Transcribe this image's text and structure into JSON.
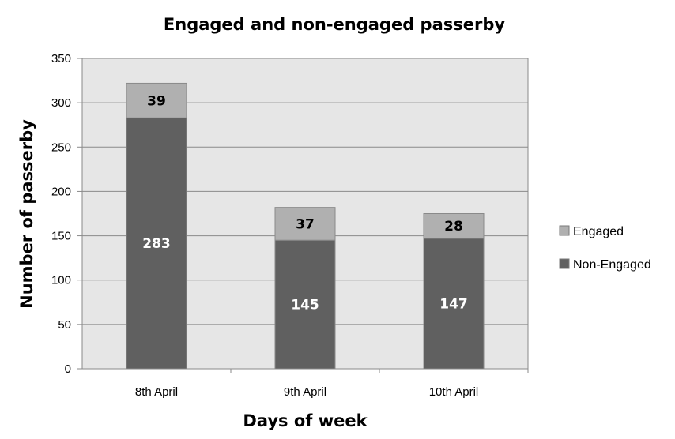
{
  "chart_data": {
    "type": "bar",
    "stacked": true,
    "title": "Engaged and non-engaged passerby",
    "xlabel": "Days of week",
    "ylabel": "Number of passerby",
    "categories": [
      "8th April",
      "9th April",
      "10th April"
    ],
    "series": [
      {
        "name": "Non-Engaged",
        "values": [
          283,
          145,
          147
        ],
        "color": "#606060",
        "label_color": "#ffffff"
      },
      {
        "name": "Engaged",
        "values": [
          39,
          37,
          28
        ],
        "color": "#b0b0b0",
        "label_color": "#000000"
      }
    ],
    "ylim": [
      0,
      350
    ],
    "yticks": [
      "0",
      "50",
      "100",
      "150",
      "200",
      "250",
      "300",
      "350"
    ],
    "grid": true,
    "plot_background": "#e6e6e6",
    "legend_position": "right"
  }
}
